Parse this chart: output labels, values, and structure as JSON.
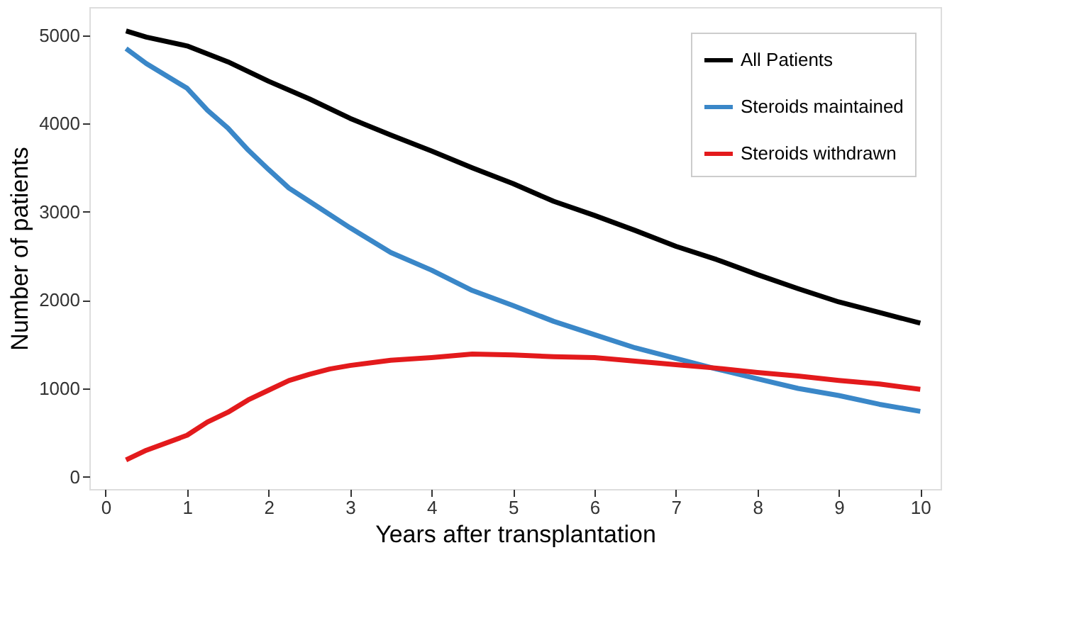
{
  "chart_data": {
    "type": "line",
    "xlabel": "Years after transplantation",
    "ylabel": "Number of patients",
    "xlim": [
      -0.2,
      10.25
    ],
    "xticks": [
      0,
      1,
      2,
      3,
      4,
      5,
      6,
      7,
      8,
      9,
      10
    ],
    "ylim": [
      -140,
      5320
    ],
    "yticks": [
      0,
      1000,
      2000,
      3000,
      4000,
      5000
    ],
    "grid": false,
    "legend": "top right",
    "marker": "none",
    "line_style": "solid",
    "series": [
      {
        "name": "All Patients",
        "color": "#000000",
        "x": [
          0.25,
          0.5,
          1,
          1.5,
          2,
          2.5,
          3,
          3.5,
          4,
          4.5,
          5,
          5.5,
          6,
          6.5,
          7,
          7.5,
          8,
          8.5,
          9,
          9.5,
          10
        ],
        "values": [
          5050,
          4980,
          4880,
          4700,
          4480,
          4280,
          4060,
          3870,
          3690,
          3500,
          3320,
          3120,
          2960,
          2790,
          2610,
          2460,
          2290,
          2130,
          1980,
          1860,
          1740
        ]
      },
      {
        "name": "Steroids maintained",
        "color": "#3a87c8",
        "x": [
          0.25,
          0.5,
          1,
          1.25,
          1.5,
          1.75,
          2,
          2.25,
          2.5,
          3,
          3.5,
          4,
          4.5,
          5,
          5.5,
          6,
          6.5,
          7,
          7.5,
          8,
          8.5,
          9,
          9.5,
          10
        ],
        "values": [
          4850,
          4680,
          4400,
          4150,
          3950,
          3700,
          3480,
          3270,
          3120,
          2820,
          2540,
          2340,
          2110,
          1940,
          1760,
          1610,
          1460,
          1340,
          1220,
          1110,
          1000,
          920,
          820,
          740
        ]
      },
      {
        "name": "Steroids withdrawn",
        "color": "#e31a1c",
        "x": [
          0.25,
          0.5,
          1,
          1.25,
          1.5,
          1.75,
          2,
          2.25,
          2.5,
          2.75,
          3,
          3.5,
          4,
          4.5,
          5,
          5.5,
          6,
          6.5,
          7,
          7.5,
          8,
          8.5,
          9,
          9.5,
          10
        ],
        "values": [
          190,
          300,
          470,
          620,
          730,
          870,
          980,
          1090,
          1160,
          1220,
          1260,
          1320,
          1350,
          1390,
          1380,
          1360,
          1350,
          1310,
          1270,
          1230,
          1180,
          1140,
          1090,
          1050,
          990
        ]
      }
    ]
  }
}
